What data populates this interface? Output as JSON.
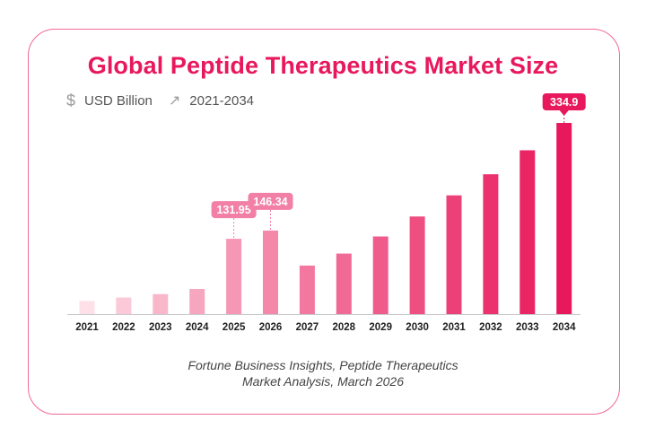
{
  "header": {
    "title": "Global Peptide Therapeutics Market Size",
    "unit_icon": "dollar-icon",
    "unit": "USD Billion",
    "range_icon": "arrow-up-right-icon",
    "range": "2021-2034"
  },
  "source": {
    "line1": "Fortune Business Insights, Peptide Therapeutics",
    "line2": "Market Analysis, March 2026"
  },
  "colors": {
    "title": "#e8185d",
    "accent": "#e8185d",
    "bar_light": "#fde0e8",
    "bar_dark": "#e8185d"
  },
  "chart_data": {
    "type": "bar",
    "title": "Global Peptide Therapeutics Market Size",
    "xlabel": "",
    "ylabel": "USD Billion",
    "categories": [
      "2021",
      "2022",
      "2023",
      "2024",
      "2025",
      "2026",
      "2027",
      "2028",
      "2029",
      "2030",
      "2031",
      "2032",
      "2033",
      "2034"
    ],
    "values": [
      23,
      29,
      35,
      44,
      131.95,
      146.34,
      85,
      106,
      136,
      171,
      208,
      245,
      287,
      334.9
    ],
    "data_labels": [
      {
        "category": "2025",
        "text": "131.95"
      },
      {
        "category": "2026",
        "text": "146.34"
      },
      {
        "category": "2034",
        "text": "334.9"
      }
    ],
    "grid": false,
    "legend": "none"
  }
}
